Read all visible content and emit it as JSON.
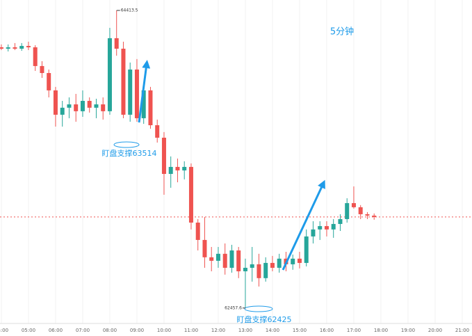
{
  "chart_data": {
    "type": "candlestick",
    "title": "5分钟",
    "annotations": [
      {
        "text": "盯盘支撑63514"
      },
      {
        "text": "盯盘支撑62425"
      }
    ],
    "x": [
      4,
      4.25,
      4.5,
      4.75,
      5,
      5.25,
      5.5,
      5.75,
      6,
      6.25,
      6.5,
      6.75,
      7,
      7.25,
      7.5,
      7.75,
      8,
      8.25,
      8.5,
      8.75,
      9,
      9.25,
      9.5,
      9.75,
      10,
      10.25,
      10.5,
      10.75,
      11,
      11.25,
      11.5,
      11.75,
      12,
      12.25,
      12.5,
      12.75,
      13,
      13.25,
      13.5,
      13.75,
      14,
      14.25,
      14.5,
      14.75,
      15,
      15.25,
      15.5,
      15.75,
      16,
      16.25,
      16.5,
      16.75,
      17,
      17.25,
      17.5,
      17.75
    ],
    "series": [
      {
        "name": "open",
        "values": [
          64171,
          64162,
          64171,
          64162,
          64180,
          64171,
          64048,
          64002,
          63888,
          63728,
          63774,
          63796,
          63751,
          63819,
          63774,
          63796,
          63751,
          64231,
          64162,
          63728,
          64025,
          63705,
          63888,
          63659,
          63577,
          63339,
          63385,
          63362,
          63385,
          63019,
          62905,
          62791,
          62768,
          62814,
          62722,
          62836,
          62699,
          62722,
          62745,
          62654,
          62754,
          62722,
          62782,
          62745,
          62782,
          62754,
          62928,
          62974,
          62996,
          62974,
          63010,
          63042,
          63147,
          63120,
          63074,
          63065
        ]
      },
      {
        "name": "high",
        "values": [
          64190,
          64190,
          64199,
          64199,
          64208,
          64185,
          64080,
          64025,
          63911,
          63819,
          63842,
          63865,
          63888,
          63842,
          63833,
          63842,
          64299,
          64413.5,
          64208,
          64071,
          64094,
          63934,
          63911,
          63696,
          63614,
          63454,
          63440,
          63422,
          63408,
          63042,
          63056,
          62859,
          62859,
          62882,
          62873,
          62859,
          62782,
          62859,
          62814,
          62791,
          62800,
          62814,
          62827,
          62809,
          62827,
          62974,
          63028,
          63028,
          63028,
          63042,
          63074,
          63179,
          63257,
          63134,
          63088,
          63079
        ]
      },
      {
        "name": "low",
        "values": [
          64153,
          64144,
          64153,
          64148,
          64153,
          64016,
          63970,
          63842,
          63650,
          63650,
          63705,
          63682,
          63714,
          63742,
          63705,
          63696,
          63728,
          64116,
          63705,
          63682,
          63682,
          63668,
          63636,
          63545,
          63202,
          63248,
          63284,
          63303,
          62974,
          62836,
          62722,
          62699,
          62722,
          62677,
          62690,
          62654,
          62457.6,
          62631,
          62599,
          62631,
          62699,
          62690,
          62699,
          62709,
          62718,
          62731,
          62882,
          62905,
          62928,
          62919,
          62964,
          63019,
          63111,
          63042,
          63042,
          63038
        ]
      },
      {
        "name": "close",
        "values": [
          64162,
          64171,
          64162,
          64180,
          64171,
          64048,
          64002,
          63888,
          63728,
          63774,
          63796,
          63751,
          63819,
          63774,
          63796,
          63751,
          64231,
          64162,
          63728,
          64025,
          63705,
          63888,
          63659,
          63577,
          63339,
          63385,
          63362,
          63385,
          63019,
          62905,
          62791,
          62768,
          62814,
          62722,
          62836,
          62699,
          62722,
          62745,
          62654,
          62754,
          62722,
          62782,
          62745,
          62782,
          62754,
          62928,
          62974,
          62996,
          62974,
          63010,
          63042,
          63147,
          63120,
          63074,
          63065,
          63056
        ]
      }
    ],
    "up_color": "#26a69a",
    "down_color": "#ef5350",
    "xlim": [
      3.95,
      21.36
    ],
    "ylim": [
      62356,
      64482
    ],
    "xticks": [
      {
        "value": 4,
        "label": "04:00"
      },
      {
        "value": 5,
        "label": "05:00"
      },
      {
        "value": 6,
        "label": "06:00"
      },
      {
        "value": 7,
        "label": "07:00"
      },
      {
        "value": 8,
        "label": "08:00"
      },
      {
        "value": 9,
        "label": "09:00"
      },
      {
        "value": 10,
        "label": "10:00"
      },
      {
        "value": 11,
        "label": "11:00"
      },
      {
        "value": 12,
        "label": "12:00"
      },
      {
        "value": 13,
        "label": "13:00"
      },
      {
        "value": 14,
        "label": "14:00"
      },
      {
        "value": 15,
        "label": "15:00"
      },
      {
        "value": 16,
        "label": "16:00"
      },
      {
        "value": 17,
        "label": "17:00"
      },
      {
        "value": 18,
        "label": "18:00"
      },
      {
        "value": 19,
        "label": "19:00"
      },
      {
        "value": 20,
        "label": "20:00"
      },
      {
        "value": 21,
        "label": "21:00"
      }
    ],
    "grid": true
  }
}
